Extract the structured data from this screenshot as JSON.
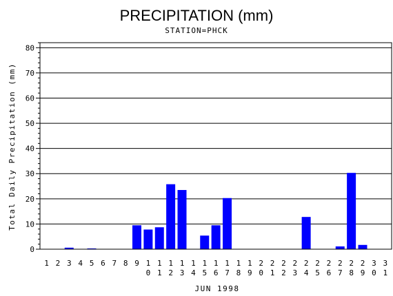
{
  "chart_data": {
    "type": "bar",
    "title": "PRECIPITATION (mm)",
    "subtitle": "STATION=PHCK",
    "xlabel": "JUN 1998",
    "ylabel": "Total Daily Precipitation (mm)",
    "ylim": [
      0,
      82
    ],
    "yticks": [
      0,
      10,
      20,
      30,
      40,
      50,
      60,
      70,
      80
    ],
    "grid": "horizontal",
    "bar_color": "#0000ff",
    "categories": [
      "1",
      "2",
      "3",
      "4",
      "5",
      "6",
      "7",
      "8",
      "9",
      "10",
      "11",
      "12",
      "13",
      "14",
      "15",
      "16",
      "17",
      "18",
      "19",
      "20",
      "21",
      "22",
      "23",
      "24",
      "25",
      "26",
      "27",
      "28",
      "29",
      "30",
      "31"
    ],
    "values": [
      0,
      0,
      0.6,
      0,
      0.3,
      0,
      0,
      0,
      9.5,
      7.8,
      8.7,
      25.8,
      23.5,
      0,
      5.4,
      9.5,
      20.3,
      0,
      0,
      0,
      0,
      0,
      0,
      12.8,
      0,
      0,
      1.1,
      30.3,
      1.7,
      0,
      0
    ]
  }
}
